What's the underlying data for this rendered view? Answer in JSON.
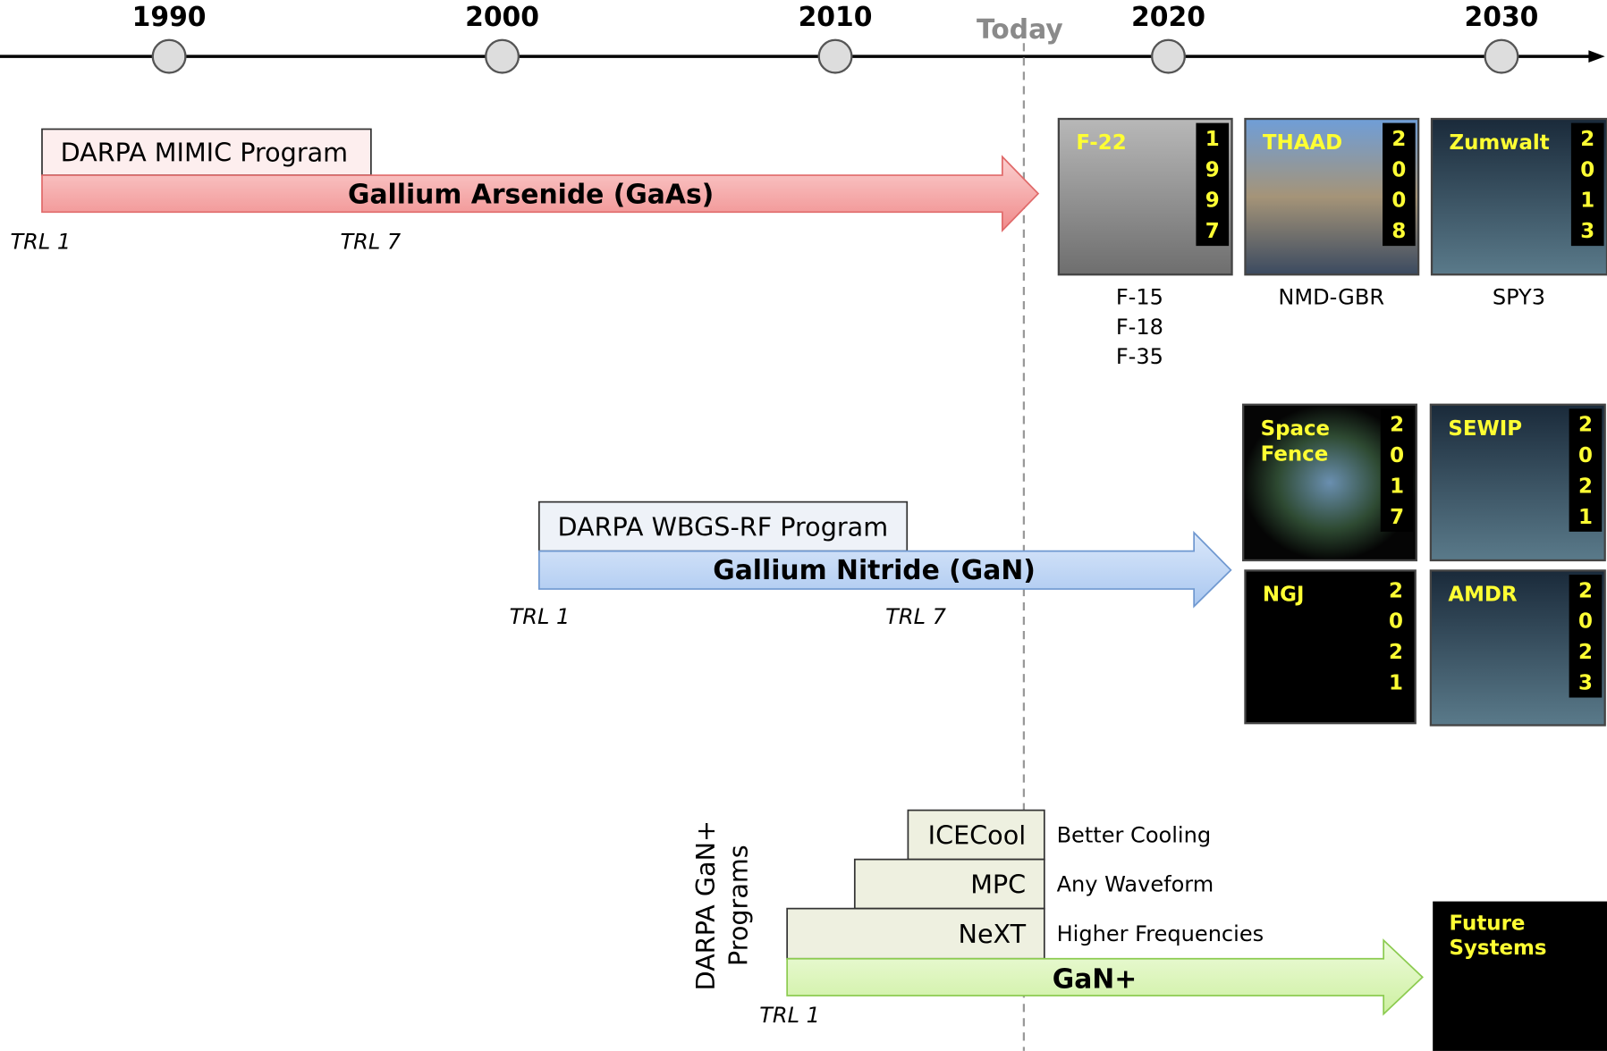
{
  "timeline": {
    "years": [
      "1990",
      "2000",
      "2010",
      "2020",
      "2030"
    ],
    "today": "Today"
  },
  "rows": [
    {
      "program": "DARPA MIMIC Program",
      "technology": "Gallium Arsenide (GaAs)",
      "trl_start": "TRL 1",
      "trl_end": "TRL 7"
    },
    {
      "program": "DARPA WBGS-RF Program",
      "technology": "Gallium Nitride (GaN)",
      "trl_start": "TRL 1",
      "trl_end": "TRL 7"
    },
    {
      "technology": "GaN+",
      "trl_start": "TRL 1"
    }
  ],
  "gaas_systems": [
    {
      "name_lines": [
        "F-22"
      ],
      "year": "1997",
      "caption": [
        "F-15",
        "F-18",
        "F-35"
      ]
    },
    {
      "name_lines": [
        "THAAD"
      ],
      "year": "2008",
      "caption": [
        "NMD-GBR"
      ]
    },
    {
      "name_lines": [
        "Zumwalt"
      ],
      "year": "2013",
      "caption": [
        "SPY3"
      ]
    }
  ],
  "gan_systems": [
    {
      "name_lines": [
        "Space",
        "Fence"
      ],
      "year": "2017"
    },
    {
      "name_lines": [
        "SEWIP"
      ],
      "year": "2021"
    },
    {
      "name_lines": [
        "NGJ"
      ],
      "year": "2021"
    },
    {
      "name_lines": [
        "AMDR"
      ],
      "year": "2023"
    }
  ],
  "gan_plus": {
    "label_lines": [
      "DARPA GaN+",
      "Programs"
    ],
    "programs": [
      {
        "name": "ICECool",
        "benefit": "Better Cooling"
      },
      {
        "name": "MPC",
        "benefit": "Any Waveform"
      },
      {
        "name": "NeXT",
        "benefit": "Higher Frequencies"
      }
    ]
  },
  "future": {
    "name_lines": [
      "Future",
      "Systems"
    ]
  }
}
